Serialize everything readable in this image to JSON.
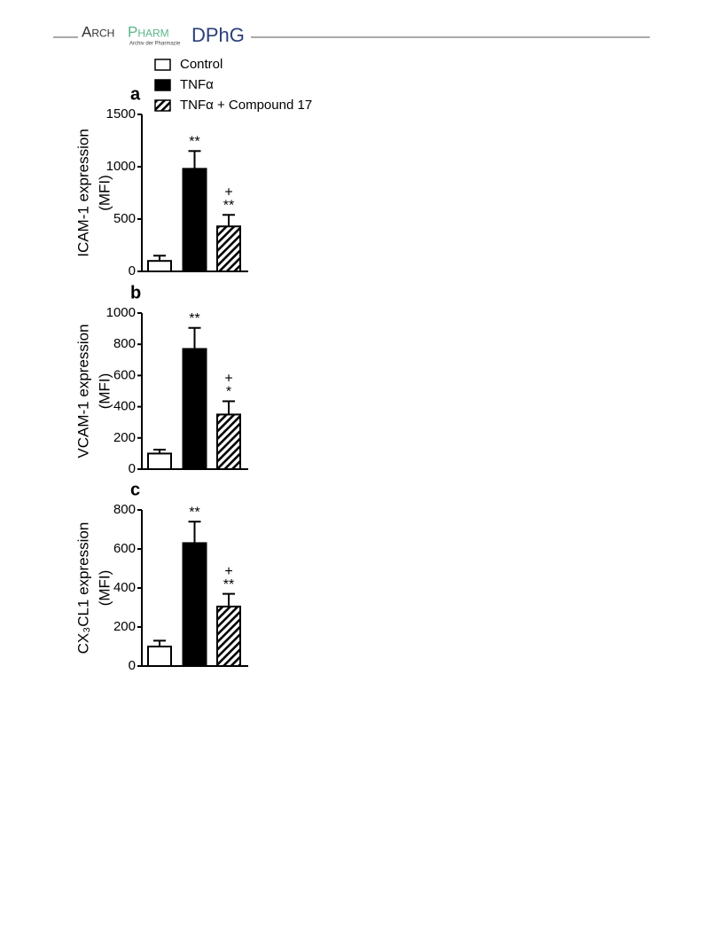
{
  "header": {
    "logo_arch": "Arch",
    "logo_pharm": "Pharm",
    "logo_sub": "Archiv der Pharmazie",
    "logo_society": "DPhG"
  },
  "chart_data": [
    {
      "type": "bar",
      "panel": "a",
      "ylabel": [
        "ICAM-1 expression",
        "(MFI)"
      ],
      "ylim": [
        0,
        1500
      ],
      "yticks": [
        0,
        500,
        1000,
        1500
      ],
      "series": [
        {
          "name": "Control",
          "color": "#ffffff",
          "values": [
            100
          ],
          "errors": [
            50
          ]
        },
        {
          "name": "TNFα",
          "color": "#000000",
          "values": [
            980
          ],
          "errors": [
            170
          ]
        },
        {
          "name": "TNFα + Compound 17",
          "color": "#ffffff",
          "pattern": "hatch",
          "values": [
            430
          ],
          "errors": [
            110
          ]
        }
      ],
      "annotations": [
        null,
        [
          "**"
        ],
        [
          "+",
          "**"
        ]
      ]
    },
    {
      "type": "bar",
      "panel": "b",
      "ylabel": [
        "VCAM-1 expression",
        "(MFI)"
      ],
      "ylim": [
        0,
        1000
      ],
      "yticks": [
        0,
        200,
        400,
        600,
        800,
        1000
      ],
      "series": [
        {
          "name": "Control",
          "color": "#ffffff",
          "values": [
            100
          ],
          "errors": [
            25
          ]
        },
        {
          "name": "TNFα",
          "color": "#000000",
          "values": [
            770
          ],
          "errors": [
            135
          ]
        },
        {
          "name": "TNFα + Compound 17",
          "color": "#ffffff",
          "pattern": "hatch",
          "values": [
            350
          ],
          "errors": [
            85
          ]
        }
      ],
      "annotations": [
        null,
        [
          "**"
        ],
        [
          "+",
          "*"
        ]
      ]
    },
    {
      "type": "bar",
      "panel": "c",
      "ylabel": [
        "CX₃CL1 expression",
        "(MFI)"
      ],
      "ylim": [
        0,
        800
      ],
      "yticks": [
        0,
        200,
        400,
        600,
        800
      ],
      "series": [
        {
          "name": "Control",
          "color": "#ffffff",
          "values": [
            100
          ],
          "errors": [
            30
          ]
        },
        {
          "name": "TNFα",
          "color": "#000000",
          "values": [
            630
          ],
          "errors": [
            110
          ]
        },
        {
          "name": "TNFα + Compound 17",
          "color": "#ffffff",
          "pattern": "hatch",
          "values": [
            305
          ],
          "errors": [
            65
          ]
        }
      ],
      "annotations": [
        null,
        [
          "**"
        ],
        [
          "+",
          "**"
        ]
      ]
    }
  ]
}
